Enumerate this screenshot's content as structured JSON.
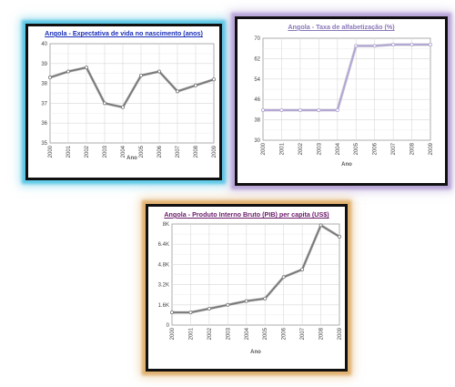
{
  "chart_data": [
    {
      "type": "line",
      "title": "Angola - Expectativa de vida no nascimento (anos)",
      "title_color": "#1a2fb8",
      "xlabel": "Ano",
      "ylabel": "",
      "x": [
        "2000",
        "2001",
        "2002",
        "2003",
        "2004",
        "2005",
        "2006",
        "2007",
        "2008",
        "2009"
      ],
      "yticks": [
        "35",
        "36",
        "37",
        "38",
        "39",
        "40"
      ],
      "ylim": [
        35,
        40
      ],
      "series": [
        {
          "values": [
            38.3,
            38.6,
            38.8,
            37.0,
            36.8,
            38.4,
            38.6,
            37.6,
            37.9,
            38.2
          ]
        }
      ],
      "line_color": "#7a7a7a",
      "grid": true
    },
    {
      "type": "line",
      "title": "Angola - Taxa de alfabetização (%)",
      "title_color": "#8a78b8",
      "xlabel": "Ano",
      "ylabel": "",
      "x": [
        "2000",
        "2001",
        "2002",
        "2003",
        "2004",
        "2005",
        "2006",
        "2007",
        "2008",
        "2009"
      ],
      "yticks": [
        "30",
        "38",
        "46",
        "54",
        "62",
        "70"
      ],
      "ylim": [
        30,
        70
      ],
      "series": [
        {
          "values": [
            41.8,
            41.8,
            41.8,
            41.8,
            41.8,
            67.0,
            67.0,
            67.5,
            67.5,
            67.5
          ]
        }
      ],
      "line_color": "#b3a6d6",
      "grid": true
    },
    {
      "type": "line",
      "title": "Angola - Produto Interno Bruto (PIB) per capita (US$)",
      "title_color": "#6a1a6a",
      "xlabel": "Ano",
      "ylabel": "",
      "x": [
        "2000",
        "2001",
        "2002",
        "2003",
        "2004",
        "2005",
        "2006",
        "2007",
        "2008",
        "2009"
      ],
      "yticks": [
        "0",
        "1.6K",
        "3.2K",
        "4.8K",
        "6.4K",
        "8K"
      ],
      "ylim": [
        0,
        8000
      ],
      "series": [
        {
          "values": [
            1000,
            1000,
            1300,
            1600,
            1900,
            2100,
            3800,
            4400,
            7900,
            7000
          ]
        }
      ],
      "line_color": "#7a7a7a",
      "grid": true
    }
  ]
}
